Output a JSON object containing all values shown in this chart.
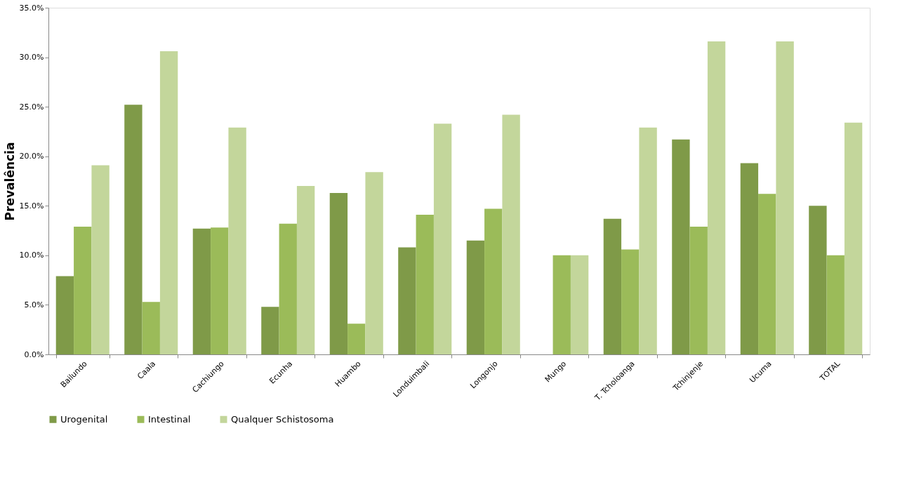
{
  "chart_data": {
    "type": "bar",
    "ylabel": "Prevalência",
    "categories": [
      "Bailundo",
      "Caala",
      "Cachiungo",
      "Ecunha",
      "Huambo",
      "Londuimbali",
      "Longonjo",
      "Mungo",
      "T. Tcholoanga",
      "Tchinjenje",
      "Ucuma",
      "TOTAL"
    ],
    "series": [
      {
        "name": "Urogenital",
        "color": "#7f9a48",
        "values": [
          7.9,
          25.2,
          12.7,
          4.8,
          16.3,
          10.8,
          11.5,
          0,
          13.7,
          21.7,
          19.3,
          15.0
        ]
      },
      {
        "name": "Intestinal",
        "color": "#9bbb59",
        "values": [
          12.9,
          5.3,
          12.8,
          13.2,
          3.1,
          14.1,
          14.7,
          10.0,
          10.6,
          12.9,
          16.2,
          10.0
        ]
      },
      {
        "name": "Qualquer Schistosoma",
        "color": "#c3d69b",
        "values": [
          19.1,
          30.6,
          22.9,
          17.0,
          18.4,
          23.3,
          24.2,
          10.0,
          22.9,
          31.6,
          31.6,
          23.4
        ]
      }
    ],
    "ylim": [
      0,
      35
    ],
    "yticks": [
      {
        "value": 0,
        "label": "0.0%"
      },
      {
        "value": 5,
        "label": "5.0%"
      },
      {
        "value": 10,
        "label": "10.0%"
      },
      {
        "value": 15,
        "label": "15.0%"
      },
      {
        "value": 20,
        "label": "20.0%"
      },
      {
        "value": 25,
        "label": "25.0%"
      },
      {
        "value": 30,
        "label": "30.0%"
      },
      {
        "value": 35,
        "label": "35.0%"
      }
    ],
    "grid": false,
    "legend": "bottom"
  }
}
